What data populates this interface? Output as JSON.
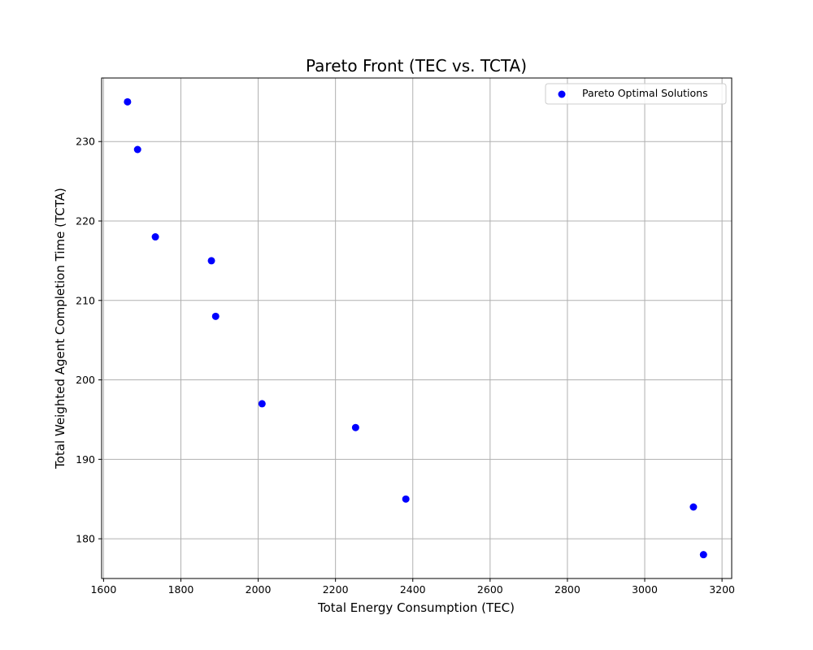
{
  "chart_data": {
    "type": "scatter",
    "title": "Pareto Front (TEC vs. TCTA)",
    "xlabel": "Total Energy Consumption (TEC)",
    "ylabel": "Total Weighted Agent Completion Time (TCTA)",
    "xlim": [
      1595,
      3225
    ],
    "ylim": [
      175,
      238
    ],
    "xticks": [
      1600,
      1800,
      2000,
      2200,
      2400,
      2600,
      2800,
      3000,
      3200
    ],
    "yticks": [
      180,
      190,
      200,
      210,
      220,
      230
    ],
    "grid": true,
    "legend_position": "top-right",
    "series": [
      {
        "name": "Pareto Optimal Solutions",
        "color": "#0000ff",
        "points": [
          {
            "x": 1662,
            "y": 235
          },
          {
            "x": 1688,
            "y": 229
          },
          {
            "x": 1734,
            "y": 218
          },
          {
            "x": 1879,
            "y": 215
          },
          {
            "x": 1890,
            "y": 208
          },
          {
            "x": 2010,
            "y": 197
          },
          {
            "x": 2252,
            "y": 194
          },
          {
            "x": 2382,
            "y": 185
          },
          {
            "x": 3126,
            "y": 184
          },
          {
            "x": 3152,
            "y": 178
          }
        ]
      }
    ]
  }
}
